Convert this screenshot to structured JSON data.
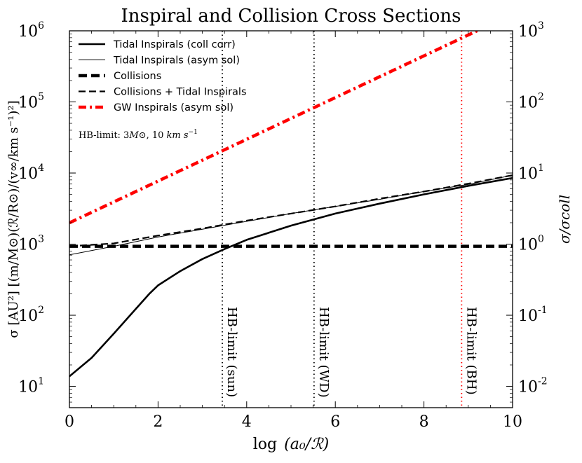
{
  "chart_data": {
    "type": "line",
    "title": "Inspiral and Collision Cross Sections",
    "xlabel_prefix": "log",
    "xlabel_arg": "(a₀/ℛ)",
    "ylabel": "σ [AU²] [(m/M⊙)(ℛ/R⊙)/(v∞/km s⁻¹)²]",
    "ylabel_right": "σ/σcoll",
    "xlim": [
      0,
      10
    ],
    "ylim_log10": [
      0.7,
      6
    ],
    "ylim_right_log10": [
      -2.3,
      3
    ],
    "x_ticks": [
      0,
      2,
      4,
      6,
      8,
      10
    ],
    "x_tick_labels": [
      "0",
      "2",
      "4",
      "6",
      "8",
      "10"
    ],
    "y_ticks": [
      {
        "log": 1,
        "base": "10",
        "exp": "1"
      },
      {
        "log": 2,
        "base": "10",
        "exp": "2"
      },
      {
        "log": 3,
        "base": "10",
        "exp": "3"
      },
      {
        "log": 4,
        "base": "10",
        "exp": "4"
      },
      {
        "log": 5,
        "base": "10",
        "exp": "5"
      },
      {
        "log": 6,
        "base": "10",
        "exp": "6"
      }
    ],
    "y_ticks_right": [
      {
        "log": -2,
        "base": "10",
        "exp": "-2"
      },
      {
        "log": -1,
        "base": "10",
        "exp": "-1"
      },
      {
        "log": 0,
        "base": "10",
        "exp": "0"
      },
      {
        "log": 1,
        "base": "10",
        "exp": "1"
      },
      {
        "log": 2,
        "base": "10",
        "exp": "2"
      },
      {
        "log": 3,
        "base": "10",
        "exp": "3"
      }
    ],
    "series": [
      {
        "name": "Tidal Inspirals (coll corr)",
        "style": "solid-thick",
        "color": "#000000",
        "x": [
          0,
          0.5,
          1.0,
          1.5,
          1.8,
          2.0,
          2.5,
          3.0,
          3.5,
          4.0,
          5.0,
          6.0,
          7.0,
          8.0,
          9.0,
          10.0
        ],
        "log10_y": [
          1.14,
          1.4,
          1.74,
          2.09,
          2.3,
          2.42,
          2.62,
          2.79,
          2.93,
          3.06,
          3.26,
          3.43,
          3.57,
          3.7,
          3.82,
          3.93
        ]
      },
      {
        "name": "Tidal Inspirals (asym sol)",
        "style": "solid-thin",
        "color": "#000000",
        "x": [
          0,
          1,
          2,
          3,
          4,
          5,
          6,
          7,
          8,
          9,
          10
        ],
        "log10_y": [
          2.85,
          2.97,
          3.1,
          3.21,
          3.32,
          3.43,
          3.53,
          3.63,
          3.74,
          3.84,
          3.97
        ]
      },
      {
        "name": "Collisions",
        "style": "dashed-thick",
        "color": "#000000",
        "x": [
          0,
          10
        ],
        "log10_y": [
          2.97,
          2.97
        ]
      },
      {
        "name": "Collisions + Tidal Inspirals",
        "style": "dashed",
        "color": "#000000",
        "x": [
          0,
          1,
          2,
          3,
          4,
          5,
          6,
          7,
          8,
          9,
          10
        ],
        "log10_y": [
          2.97,
          3.01,
          3.12,
          3.22,
          3.33,
          3.43,
          3.53,
          3.64,
          3.74,
          3.85,
          3.97
        ]
      },
      {
        "name": "GW Inspirals (asym sol)",
        "style": "dashdot-thick",
        "color": "#ff0000",
        "x": [
          0,
          9.2
        ],
        "log10_y": [
          3.3,
          6.0
        ]
      }
    ],
    "vlines": [
      {
        "x": 3.45,
        "label": "HB-limit (sun)",
        "color": "#000000"
      },
      {
        "x": 5.52,
        "label": "HB-limit (WD)",
        "color": "#000000"
      },
      {
        "x": 8.85,
        "label": "HB-limit (BH)",
        "color": "#ff0000"
      }
    ],
    "annotation": {
      "prefix": "HB-limit: 3",
      "mass": "M⊙",
      "speed": ", 10 ",
      "unit": "km s",
      "unit_exp": "−1"
    },
    "legend_position": "top-left"
  }
}
